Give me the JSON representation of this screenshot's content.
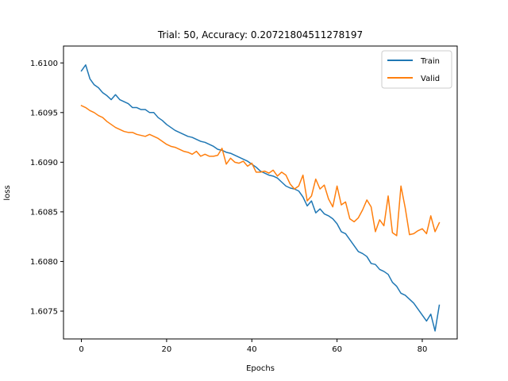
{
  "chart_data": {
    "type": "line",
    "title": "Trial: 50, Accuracy: 0.20721804511278197",
    "xlabel": "Epochs",
    "ylabel": "loss",
    "xlim": [
      -4.2,
      88.2
    ],
    "ylim": [
      1.60722,
      1.61017
    ],
    "xticks": [
      0,
      20,
      40,
      60,
      80
    ],
    "yticks": [
      1.6075,
      1.608,
      1.6085,
      1.609,
      1.6095,
      1.61
    ],
    "ytick_labels": [
      "1.6075",
      "1.6080",
      "1.6085",
      "1.6090",
      "1.6095",
      "1.6100"
    ],
    "grid": false,
    "legend_position": "top-right",
    "colors": {
      "Train": "#1f77b4",
      "Valid": "#ff7f0e"
    },
    "series": [
      {
        "name": "Train",
        "values": [
          1.60992,
          1.60998,
          1.60984,
          1.60978,
          1.60975,
          1.6097,
          1.60967,
          1.60963,
          1.60968,
          1.60963,
          1.60961,
          1.60959,
          1.60955,
          1.60955,
          1.60953,
          1.60953,
          1.6095,
          1.6095,
          1.60945,
          1.60942,
          1.60938,
          1.60935,
          1.60932,
          1.6093,
          1.60928,
          1.60926,
          1.60925,
          1.60923,
          1.60921,
          1.6092,
          1.60918,
          1.60916,
          1.60913,
          1.60912,
          1.6091,
          1.60909,
          1.60907,
          1.60905,
          1.60903,
          1.60901,
          1.60898,
          1.60895,
          1.60891,
          1.60889,
          1.60887,
          1.60886,
          1.60884,
          1.6088,
          1.60876,
          1.60874,
          1.60873,
          1.60871,
          1.60865,
          1.60856,
          1.60861,
          1.60849,
          1.60853,
          1.60848,
          1.60846,
          1.60843,
          1.60838,
          1.6083,
          1.60828,
          1.60822,
          1.60816,
          1.6081,
          1.60808,
          1.60805,
          1.60798,
          1.60797,
          1.60792,
          1.6079,
          1.60787,
          1.60779,
          1.60775,
          1.60768,
          1.60766,
          1.60762,
          1.60758,
          1.60752,
          1.60746,
          1.6074,
          1.60747,
          1.6073,
          1.60756
        ]
      },
      {
        "name": "Valid",
        "values": [
          1.60957,
          1.60955,
          1.60952,
          1.6095,
          1.60947,
          1.60945,
          1.60941,
          1.60938,
          1.60935,
          1.60933,
          1.60931,
          1.6093,
          1.6093,
          1.60928,
          1.60927,
          1.60926,
          1.60928,
          1.60926,
          1.60924,
          1.60921,
          1.60918,
          1.60916,
          1.60915,
          1.60913,
          1.60911,
          1.6091,
          1.60908,
          1.60911,
          1.60906,
          1.60908,
          1.60906,
          1.60906,
          1.60907,
          1.60914,
          1.60898,
          1.60904,
          1.609,
          1.60899,
          1.60901,
          1.60896,
          1.60899,
          1.6089,
          1.6089,
          1.60891,
          1.60889,
          1.60892,
          1.60886,
          1.6089,
          1.60887,
          1.60878,
          1.60873,
          1.60876,
          1.60887,
          1.60861,
          1.60866,
          1.60883,
          1.60873,
          1.60877,
          1.60863,
          1.60855,
          1.60876,
          1.60857,
          1.6086,
          1.60843,
          1.6084,
          1.60844,
          1.60852,
          1.60862,
          1.60855,
          1.6083,
          1.60842,
          1.60836,
          1.60866,
          1.60829,
          1.60826,
          1.60876,
          1.60854,
          1.60827,
          1.60828,
          1.60831,
          1.60833,
          1.60828,
          1.60846,
          1.6083,
          1.60839
        ]
      }
    ]
  }
}
